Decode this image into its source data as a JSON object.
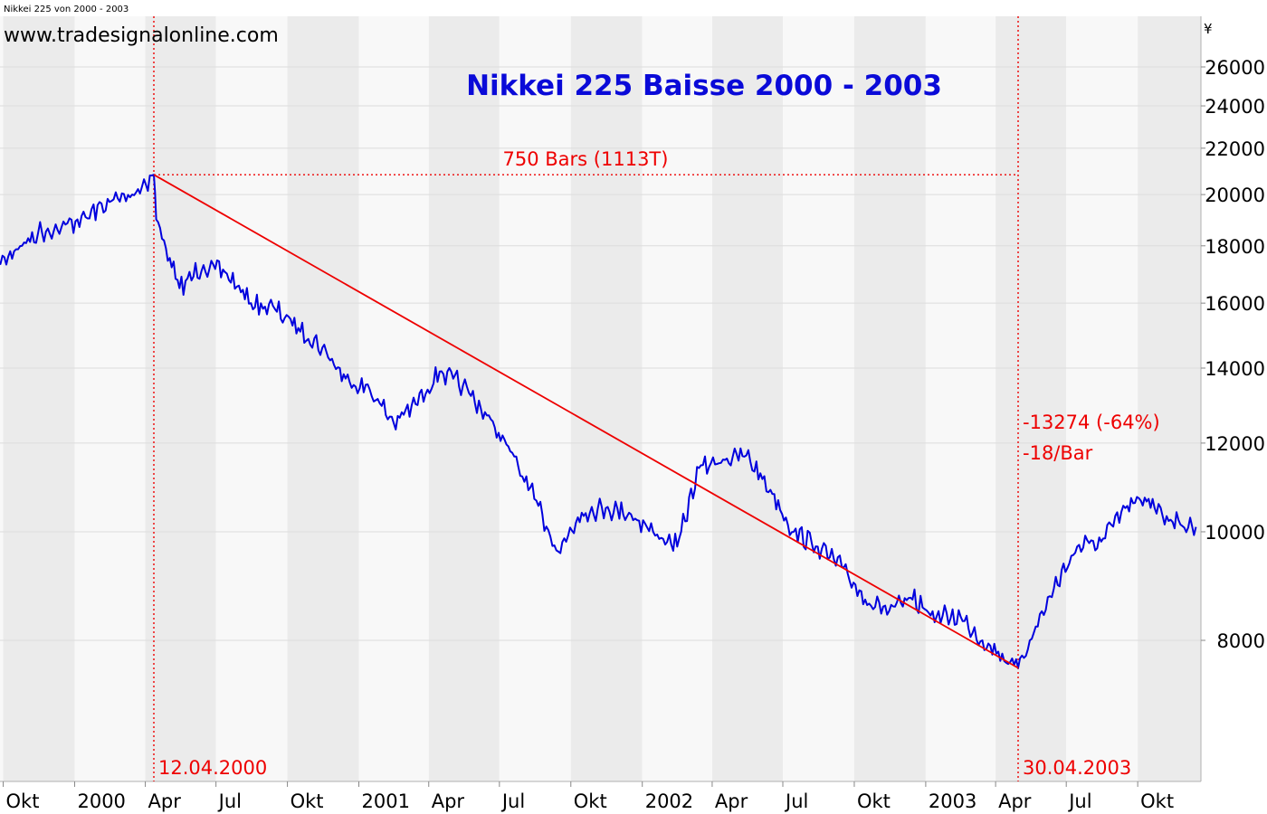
{
  "window_title": "Nikkei 225 von 2000 - 2003",
  "watermark": "www.tradesignalonline.com",
  "chart_data": {
    "type": "line",
    "title": "Nikkei 225 Baisse 2000 - 2003",
    "currency": "¥",
    "y_scale": "log",
    "ylim": [
      6300,
      28000
    ],
    "y_ticks": [
      8000,
      10000,
      12000,
      14000,
      16000,
      18000,
      20000,
      22000,
      24000,
      26000
    ],
    "x_ticks": [
      "Okt",
      "2000",
      "Apr",
      "Jul",
      "Okt",
      "2001",
      "Apr",
      "Jul",
      "Okt",
      "2002",
      "Apr",
      "Jul",
      "Okt",
      "2003",
      "Apr",
      "Jul",
      "Okt"
    ],
    "grid": true,
    "series": [
      {
        "color": "#0000dd",
        "x": [
          "1999-09",
          "1999-10",
          "1999-11",
          "1999-12",
          "2000-01",
          "2000-02",
          "2000-03",
          "2000-04-12",
          "2000-04",
          "2000-05",
          "2000-06",
          "2000-07",
          "2000-08",
          "2000-09",
          "2000-10",
          "2000-11",
          "2000-12",
          "2001-01",
          "2001-02",
          "2001-03",
          "2001-04",
          "2001-05",
          "2001-06",
          "2001-07",
          "2001-08",
          "2001-09",
          "2001-10",
          "2001-11",
          "2001-12",
          "2002-01",
          "2002-02",
          "2002-03",
          "2002-04",
          "2002-05",
          "2002-06",
          "2002-07",
          "2002-08",
          "2002-09",
          "2002-10",
          "2002-11",
          "2002-12",
          "2003-01",
          "2003-02",
          "2003-03",
          "2003-04-30",
          "2003-05",
          "2003-06",
          "2003-07",
          "2003-08",
          "2003-09",
          "2003-10",
          "2003-11",
          "2003-12"
        ],
        "values": [
          17200,
          17800,
          18500,
          18700,
          19100,
          19700,
          20000,
          20833,
          19000,
          16500,
          17300,
          17000,
          16000,
          15800,
          15200,
          14600,
          13700,
          13400,
          12500,
          13000,
          13900,
          13500,
          12700,
          11800,
          10700,
          9600,
          10400,
          10500,
          10400,
          10000,
          9700,
          11400,
          11600,
          11700,
          10900,
          10000,
          9700,
          9300,
          8700,
          8500,
          8700,
          8400,
          8400,
          8000,
          7559,
          8000,
          8900,
          9700,
          9800,
          10500,
          10700,
          10200,
          10100
        ]
      },
      {
        "name": "trend",
        "color": "#ee0000",
        "x": [
          "2000-04-12",
          "2003-04-30"
        ],
        "values": [
          20833,
          7559
        ]
      }
    ],
    "annotations": {
      "bars": "750 Bars (1113T)",
      "diff": "-13274 (-64%)",
      "per_bar": "-18/Bar",
      "start_date": "12.04.2000",
      "end_date": "30.04.2003"
    }
  }
}
